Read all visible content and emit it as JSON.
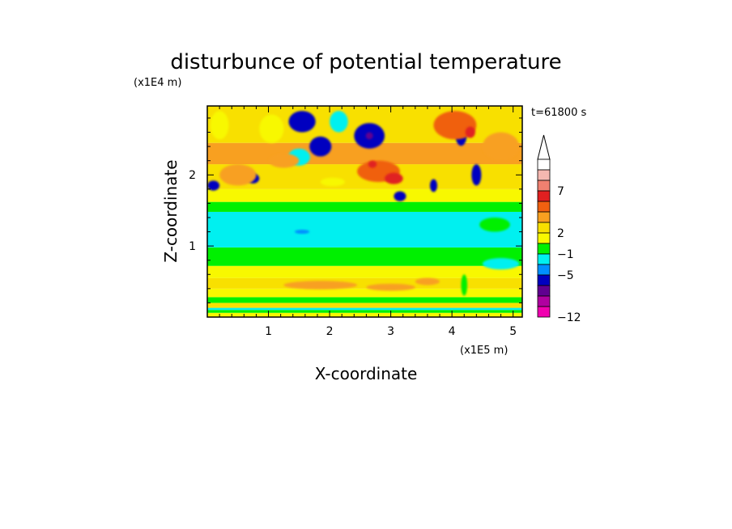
{
  "chart_data": {
    "type": "heatmap",
    "title": "disturbunce of potential temperature",
    "xlabel": "X-coordinate",
    "ylabel": "Z-coordinate",
    "x_unit": "(x1E5 m)",
    "y_unit": "(x1E4 m)",
    "time_label": "t=61800 s",
    "xlim": [
      0,
      5.15
    ],
    "ylim": [
      0,
      2.97
    ],
    "x_ticks": [
      1,
      2,
      3,
      4,
      5
    ],
    "y_ticks": [
      1,
      2
    ],
    "x_tick_labels": [
      "1",
      "2",
      "3",
      "4",
      "5"
    ],
    "y_tick_labels": [
      "1",
      "2"
    ],
    "colorbar": {
      "labeled_levels": [
        "7",
        "2",
        "−1",
        "−5",
        "−12"
      ],
      "colors_top_to_bottom": [
        "#ffffff",
        "#f5b8b0",
        "#f08070",
        "#e02020",
        "#f06010",
        "#f8a020",
        "#f8e000",
        "#f8f800",
        "#00f000",
        "#00f0f0",
        "#0090ff",
        "#0000c0",
        "#600090",
        "#b000a0",
        "#f000b0"
      ],
      "extend_max": true
    },
    "bands": [
      {
        "z_min": 0.0,
        "z_max": 0.06,
        "color": "#f8f800"
      },
      {
        "z_min": 0.06,
        "z_max": 0.1,
        "color": "#00f000"
      },
      {
        "z_min": 0.1,
        "z_max": 0.13,
        "color": "#00f0f0"
      },
      {
        "z_min": 0.13,
        "z_max": 0.2,
        "color": "#f8e000"
      },
      {
        "z_min": 0.2,
        "z_max": 0.28,
        "color": "#00f000"
      },
      {
        "z_min": 0.28,
        "z_max": 0.4,
        "color": "#f8f800"
      },
      {
        "z_min": 0.4,
        "z_max": 0.55,
        "color": "#f8e000"
      },
      {
        "z_min": 0.55,
        "z_max": 0.72,
        "color": "#f8f800"
      },
      {
        "z_min": 0.72,
        "z_max": 0.98,
        "color": "#00f000"
      },
      {
        "z_min": 0.98,
        "z_max": 1.48,
        "color": "#00f0f0"
      },
      {
        "z_min": 1.48,
        "z_max": 1.62,
        "color": "#00f000"
      },
      {
        "z_min": 1.62,
        "z_max": 1.8,
        "color": "#f8f800"
      },
      {
        "z_min": 1.8,
        "z_max": 2.15,
        "color": "#f8e000"
      },
      {
        "z_min": 2.15,
        "z_max": 2.45,
        "color": "#f8a020"
      },
      {
        "z_min": 2.45,
        "z_max": 2.97,
        "color": "#f8e000"
      }
    ],
    "blobs": [
      {
        "x": 1.5,
        "z": 2.25,
        "rx": 0.18,
        "rz": 0.12,
        "color": "#00f0f0"
      },
      {
        "x": 1.55,
        "z": 2.75,
        "rx": 0.22,
        "rz": 0.15,
        "color": "#0000c0"
      },
      {
        "x": 1.85,
        "z": 2.4,
        "rx": 0.18,
        "rz": 0.14,
        "color": "#0000c0"
      },
      {
        "x": 2.65,
        "z": 2.55,
        "rx": 0.25,
        "rz": 0.18,
        "color": "#0000c0"
      },
      {
        "x": 2.65,
        "z": 2.55,
        "rx": 0.06,
        "rz": 0.05,
        "color": "#600090"
      },
      {
        "x": 0.1,
        "z": 1.85,
        "rx": 0.1,
        "rz": 0.07,
        "color": "#0000c0"
      },
      {
        "x": 0.75,
        "z": 1.95,
        "rx": 0.1,
        "rz": 0.07,
        "color": "#0000c0"
      },
      {
        "x": 3.15,
        "z": 1.7,
        "rx": 0.1,
        "rz": 0.07,
        "color": "#0000c0"
      },
      {
        "x": 3.7,
        "z": 1.85,
        "rx": 0.06,
        "rz": 0.09,
        "color": "#0000c0"
      },
      {
        "x": 4.4,
        "z": 2.0,
        "rx": 0.08,
        "rz": 0.15,
        "color": "#0000c0"
      },
      {
        "x": 4.15,
        "z": 2.55,
        "rx": 0.09,
        "rz": 0.14,
        "color": "#0000c0"
      },
      {
        "x": 2.8,
        "z": 2.05,
        "rx": 0.35,
        "rz": 0.15,
        "color": "#f06010"
      },
      {
        "x": 3.05,
        "z": 1.95,
        "rx": 0.15,
        "rz": 0.08,
        "color": "#e02020"
      },
      {
        "x": 2.7,
        "z": 2.15,
        "rx": 0.07,
        "rz": 0.05,
        "color": "#e02020"
      },
      {
        "x": 4.05,
        "z": 2.7,
        "rx": 0.35,
        "rz": 0.2,
        "color": "#f06010"
      },
      {
        "x": 4.3,
        "z": 2.6,
        "rx": 0.08,
        "rz": 0.08,
        "color": "#e02020"
      },
      {
        "x": 1.25,
        "z": 2.2,
        "rx": 0.25,
        "rz": 0.1,
        "color": "#f8a020"
      },
      {
        "x": 0.5,
        "z": 2.0,
        "rx": 0.3,
        "rz": 0.15,
        "color": "#f8a020"
      },
      {
        "x": 4.8,
        "z": 2.4,
        "rx": 0.3,
        "rz": 0.2,
        "color": "#f8a020"
      },
      {
        "x": 2.05,
        "z": 1.9,
        "rx": 0.2,
        "rz": 0.06,
        "color": "#f8f800"
      },
      {
        "x": 1.55,
        "z": 1.2,
        "rx": 0.12,
        "rz": 0.03,
        "color": "#0090ff"
      },
      {
        "x": 1.85,
        "z": 0.45,
        "rx": 0.6,
        "rz": 0.06,
        "color": "#f8a020"
      },
      {
        "x": 3.0,
        "z": 0.42,
        "rx": 0.4,
        "rz": 0.05,
        "color": "#f8a020"
      },
      {
        "x": 3.6,
        "z": 0.5,
        "rx": 0.2,
        "rz": 0.05,
        "color": "#f8a020"
      },
      {
        "x": 4.2,
        "z": 0.45,
        "rx": 0.05,
        "rz": 0.15,
        "color": "#00f000"
      },
      {
        "x": 4.8,
        "z": 0.75,
        "rx": 0.3,
        "rz": 0.08,
        "color": "#00f0f0"
      },
      {
        "x": 4.7,
        "z": 1.3,
        "rx": 0.25,
        "rz": 0.1,
        "color": "#00f000"
      },
      {
        "x": 0.2,
        "z": 2.7,
        "rx": 0.15,
        "rz": 0.2,
        "color": "#f8f800"
      },
      {
        "x": 1.05,
        "z": 2.65,
        "rx": 0.2,
        "rz": 0.2,
        "color": "#f8f800"
      },
      {
        "x": 2.15,
        "z": 2.75,
        "rx": 0.15,
        "rz": 0.15,
        "color": "#00f0f0"
      }
    ]
  }
}
